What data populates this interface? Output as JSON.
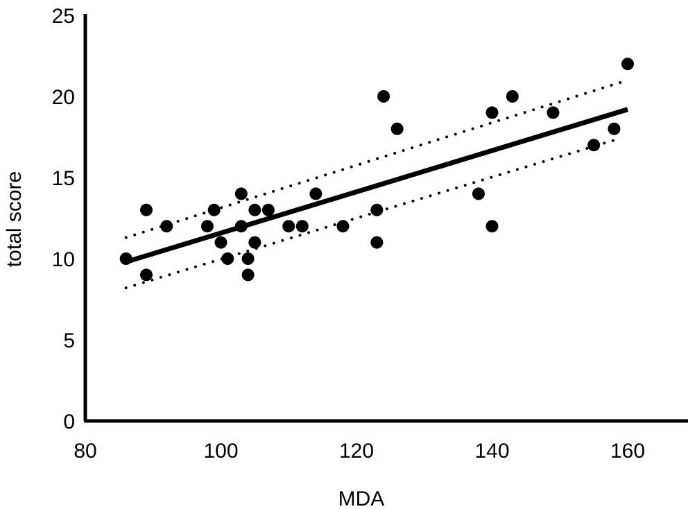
{
  "chart_data": {
    "type": "scatter",
    "title": "",
    "xlabel": "MDA",
    "ylabel": "total score",
    "xlim": [
      80,
      170
    ],
    "ylim": [
      0,
      25
    ],
    "xticks": [
      80,
      100,
      120,
      140,
      160
    ],
    "yticks": [
      0,
      5,
      10,
      15,
      20,
      25
    ],
    "grid": false,
    "legend": "none",
    "series": [
      {
        "kind": "points",
        "color": "#000000",
        "points": [
          [
            86,
            10
          ],
          [
            89,
            13
          ],
          [
            89,
            9
          ],
          [
            92,
            12
          ],
          [
            98,
            12
          ],
          [
            99,
            13
          ],
          [
            100,
            11
          ],
          [
            101,
            10
          ],
          [
            103,
            14
          ],
          [
            103,
            12
          ],
          [
            104,
            10
          ],
          [
            104,
            9
          ],
          [
            105,
            13
          ],
          [
            105,
            11
          ],
          [
            107,
            13
          ],
          [
            110,
            12
          ],
          [
            112,
            12
          ],
          [
            114,
            14
          ],
          [
            118,
            12
          ],
          [
            123,
            13
          ],
          [
            123,
            11
          ],
          [
            124,
            20
          ],
          [
            126,
            18
          ],
          [
            138,
            14
          ],
          [
            140,
            19
          ],
          [
            140,
            12
          ],
          [
            143,
            20
          ],
          [
            149,
            19
          ],
          [
            155,
            17
          ],
          [
            158,
            18
          ],
          [
            160,
            22
          ]
        ]
      },
      {
        "kind": "fit-line",
        "style": "solid",
        "color": "#000000",
        "points": [
          [
            86,
            9.8
          ],
          [
            160,
            19.2
          ]
        ]
      },
      {
        "kind": "confidence-band-upper",
        "style": "dotted",
        "color": "#000000",
        "points": [
          [
            86,
            11.3
          ],
          [
            160,
            21.0
          ]
        ]
      },
      {
        "kind": "confidence-band-lower",
        "style": "dotted",
        "color": "#000000",
        "points": [
          [
            86,
            8.2
          ],
          [
            158,
            17.3
          ]
        ]
      }
    ]
  }
}
